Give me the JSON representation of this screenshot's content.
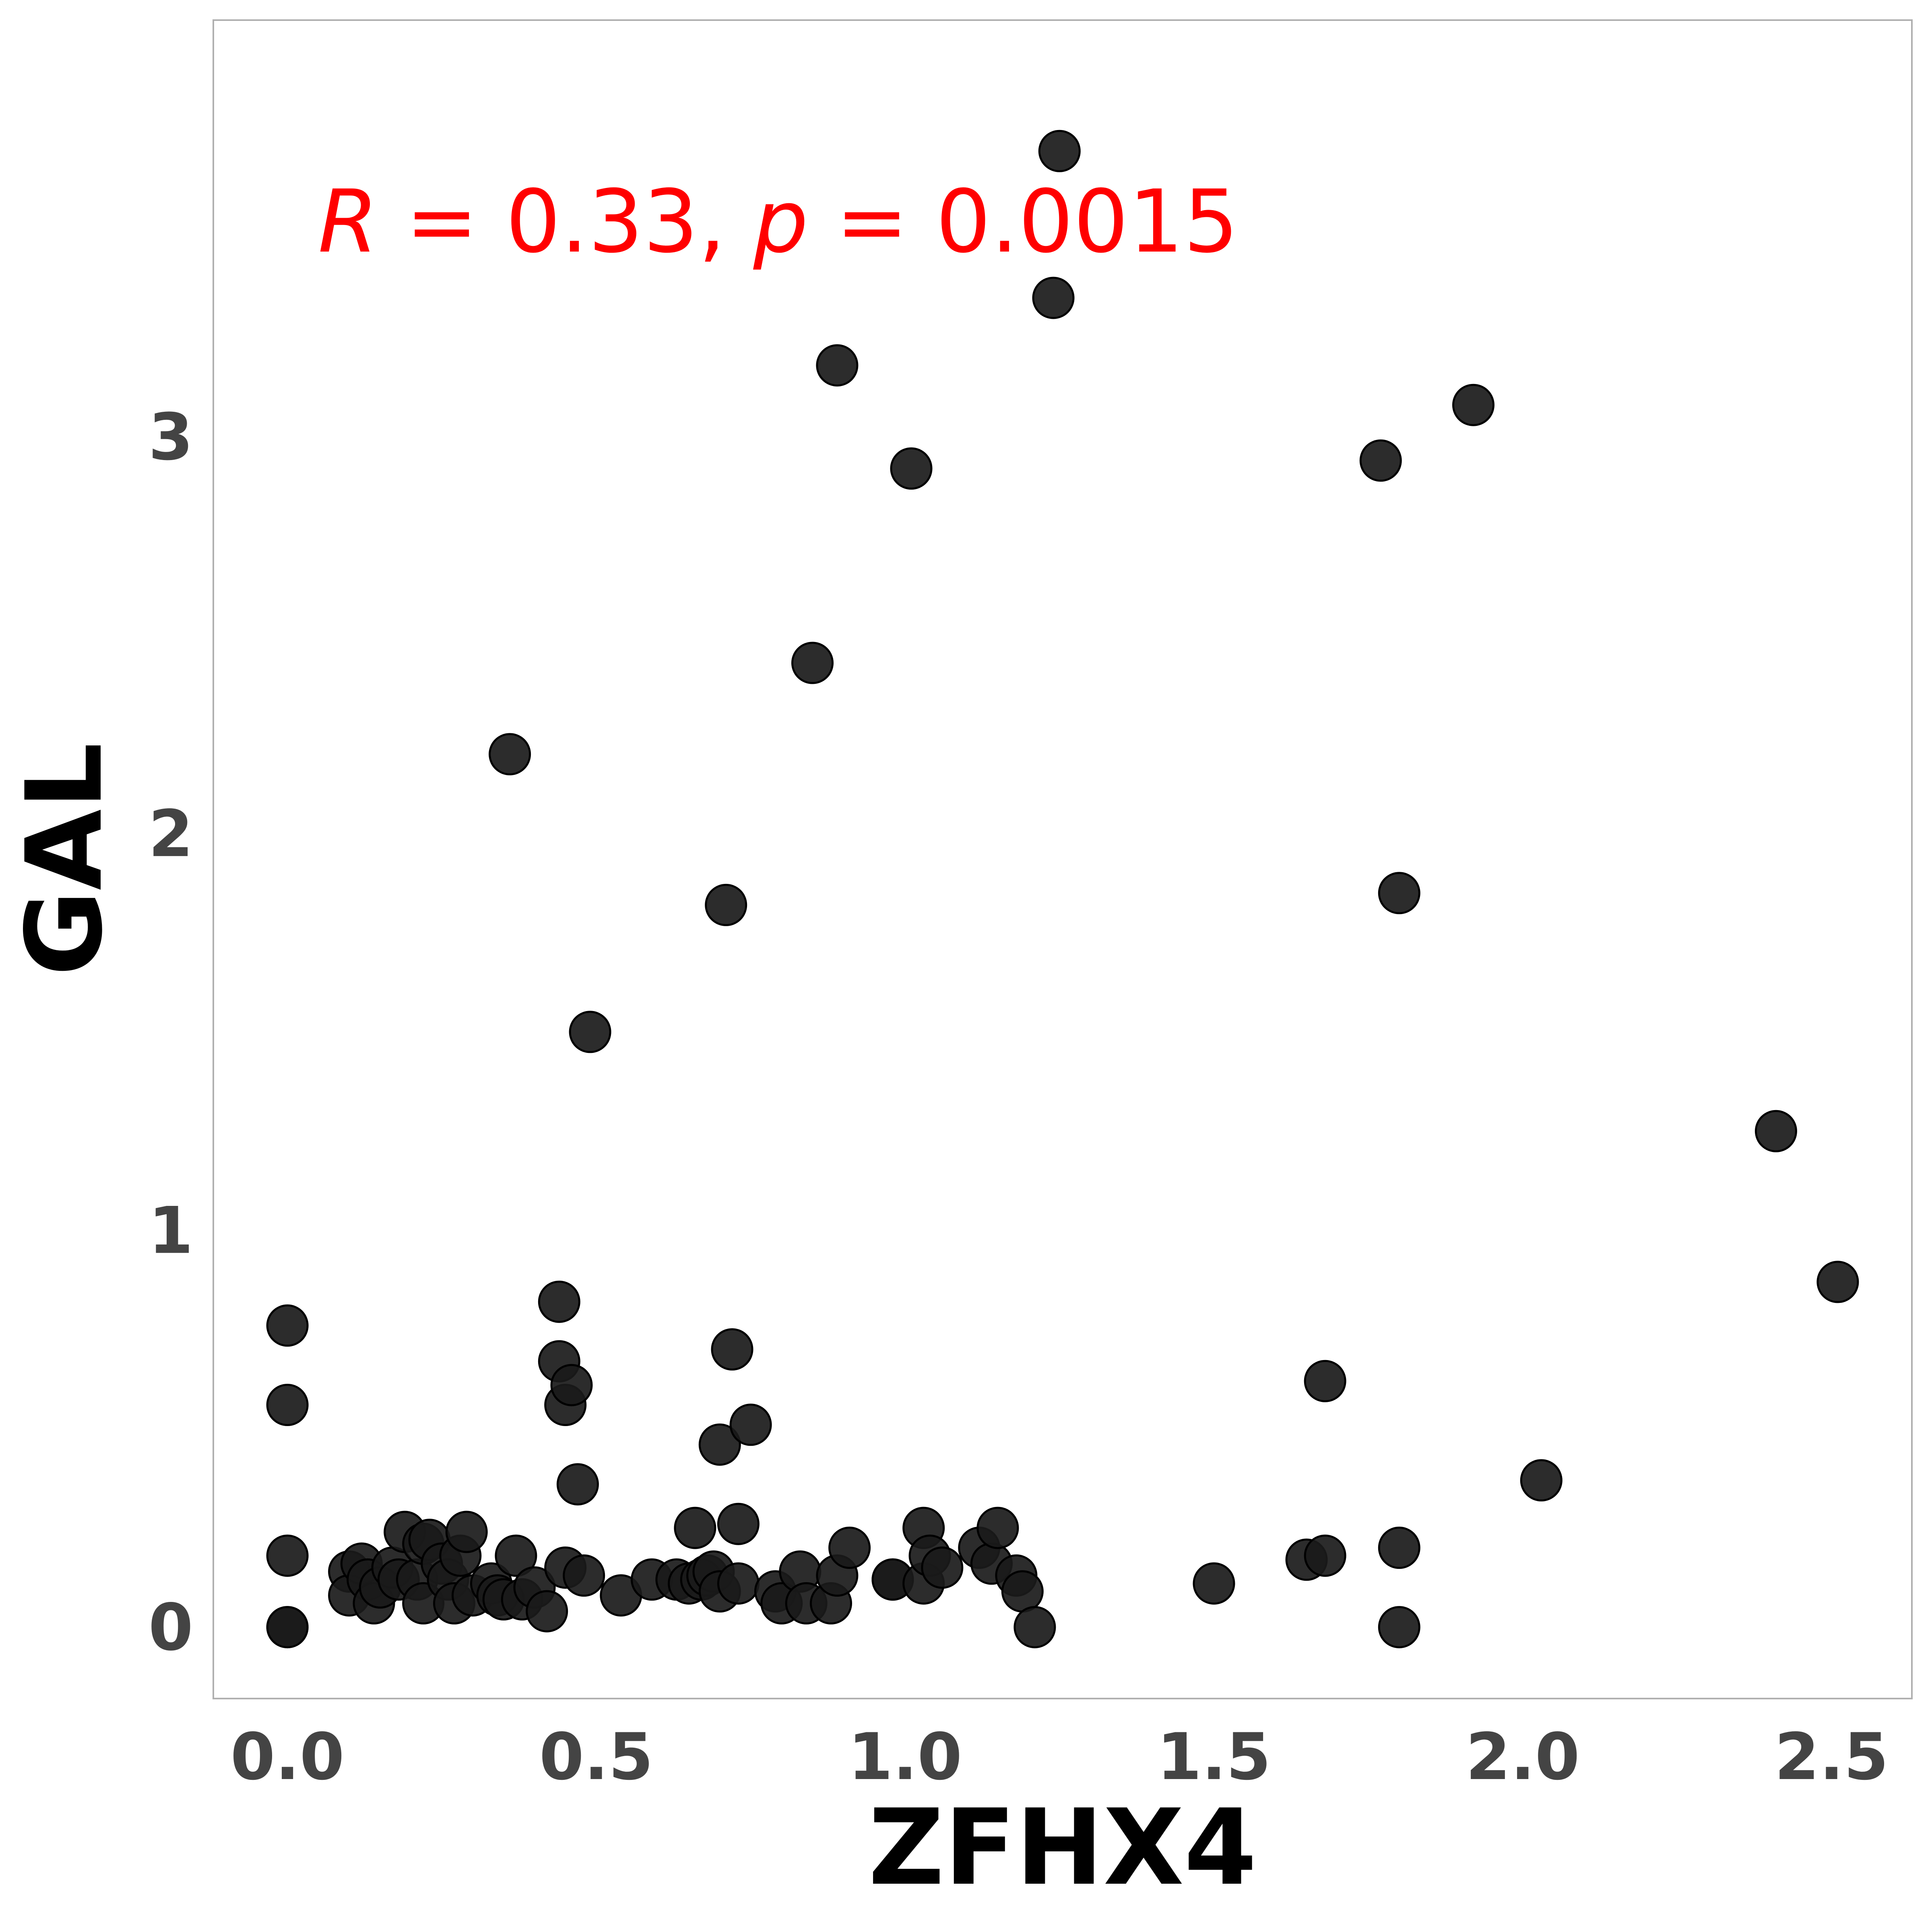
{
  "chart_data": {
    "type": "scatter",
    "xlabel": "ZFHX4",
    "ylabel": "GAL",
    "xlim": [
      -0.12,
      2.63
    ],
    "ylim": [
      -0.18,
      4.05
    ],
    "xticks": [
      0.0,
      0.5,
      1.0,
      1.5,
      2.0,
      2.5
    ],
    "xtick_labels": [
      "0.0",
      "0.5",
      "1.0",
      "1.5",
      "2.0",
      "2.5"
    ],
    "yticks": [
      0,
      1,
      2,
      3
    ],
    "ytick_labels": [
      "0",
      "1",
      "2",
      "3"
    ],
    "grid": false,
    "annotation": {
      "r_symbol": "R",
      "r_text": " = 0.33, ",
      "p_symbol": "p",
      "p_text": " = 0.0015"
    },
    "points": [
      [
        0.0,
        0.0
      ],
      [
        0.0,
        0.0
      ],
      [
        0.0,
        0.18
      ],
      [
        0.0,
        0.56
      ],
      [
        0.0,
        0.76
      ],
      [
        0.1,
        0.14
      ],
      [
        0.1,
        0.08
      ],
      [
        0.12,
        0.16
      ],
      [
        0.13,
        0.12
      ],
      [
        0.14,
        0.06
      ],
      [
        0.15,
        0.1
      ],
      [
        0.17,
        0.15
      ],
      [
        0.18,
        0.12
      ],
      [
        0.19,
        0.24
      ],
      [
        0.21,
        0.12
      ],
      [
        0.22,
        0.21
      ],
      [
        0.22,
        0.06
      ],
      [
        0.23,
        0.22
      ],
      [
        0.25,
        0.16
      ],
      [
        0.26,
        0.12
      ],
      [
        0.27,
        0.06
      ],
      [
        0.28,
        0.18
      ],
      [
        0.29,
        0.24
      ],
      [
        0.3,
        0.08
      ],
      [
        0.33,
        0.11
      ],
      [
        0.34,
        0.08
      ],
      [
        0.35,
        0.07
      ],
      [
        0.36,
        2.2
      ],
      [
        0.37,
        0.18
      ],
      [
        0.38,
        0.07
      ],
      [
        0.4,
        0.1
      ],
      [
        0.42,
        0.04
      ],
      [
        0.44,
        0.82
      ],
      [
        0.44,
        0.67
      ],
      [
        0.45,
        0.15
      ],
      [
        0.45,
        0.56
      ],
      [
        0.46,
        0.61
      ],
      [
        0.47,
        0.36
      ],
      [
        0.48,
        0.13
      ],
      [
        0.49,
        1.5
      ],
      [
        0.54,
        0.08
      ],
      [
        0.59,
        0.12
      ],
      [
        0.63,
        0.12
      ],
      [
        0.65,
        0.11
      ],
      [
        0.66,
        0.25
      ],
      [
        0.67,
        0.12
      ],
      [
        0.68,
        0.13
      ],
      [
        0.69,
        0.14
      ],
      [
        0.7,
        0.09
      ],
      [
        0.7,
        0.46
      ],
      [
        0.71,
        1.82
      ],
      [
        0.72,
        0.7
      ],
      [
        0.73,
        0.26
      ],
      [
        0.73,
        0.11
      ],
      [
        0.75,
        0.51
      ],
      [
        0.79,
        0.09
      ],
      [
        0.8,
        0.06
      ],
      [
        0.83,
        0.14
      ],
      [
        0.84,
        0.06
      ],
      [
        0.85,
        2.43
      ],
      [
        0.88,
        0.06
      ],
      [
        0.89,
        0.13
      ],
      [
        0.89,
        3.18
      ],
      [
        0.91,
        0.2
      ],
      [
        0.98,
        0.12
      ],
      [
        0.98,
        0.12
      ],
      [
        1.01,
        2.92
      ],
      [
        1.03,
        0.25
      ],
      [
        1.03,
        0.11
      ],
      [
        1.04,
        0.18
      ],
      [
        1.06,
        0.15
      ],
      [
        1.12,
        0.2
      ],
      [
        1.14,
        0.16
      ],
      [
        1.15,
        0.25
      ],
      [
        1.18,
        0.13
      ],
      [
        1.19,
        0.09
      ],
      [
        1.21,
        0.0
      ],
      [
        1.24,
        3.35
      ],
      [
        1.25,
        3.72
      ],
      [
        1.5,
        0.11
      ],
      [
        1.65,
        0.17
      ],
      [
        1.68,
        0.18
      ],
      [
        1.68,
        0.62
      ],
      [
        1.77,
        2.94
      ],
      [
        1.8,
        0.2
      ],
      [
        1.8,
        0.0
      ],
      [
        1.8,
        1.85
      ],
      [
        1.92,
        3.08
      ],
      [
        2.03,
        0.37
      ],
      [
        2.41,
        1.25
      ],
      [
        2.51,
        0.87
      ]
    ]
  },
  "colors": {
    "point_fill": "#1a1a1a",
    "point_stroke": "#000000",
    "annotation": "#ff0000",
    "tick_label": "#444444",
    "axis_title": "#000000",
    "frame": "#b0b0b0"
  }
}
